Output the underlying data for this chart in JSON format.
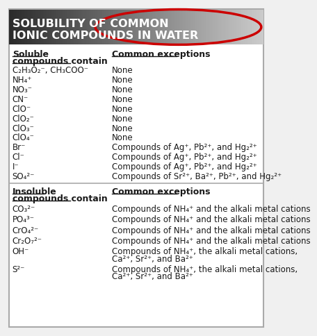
{
  "title_line1": "SOLUBILITY OF COMMON",
  "title_line2": "IONIC COMPOUNDS IN WATER",
  "bg_color": "#f0f0f0",
  "table_bg": "#ffffff",
  "border_color": "#aaaaaa",
  "text_color": "#1a1a1a",
  "header_text_color": "#ffffff",
  "bold_color": "#1a1a1a",
  "ellipse_color": "#cc0000",
  "font_size": 8.5,
  "header_font_size": 11.5,
  "soluble_rows": [
    [
      "C₂H₃O₂⁻, CH₃COO⁻",
      "None"
    ],
    [
      "NH₄⁺",
      "None"
    ],
    [
      "NO₃⁻",
      "None"
    ],
    [
      "CN⁻",
      "None"
    ],
    [
      "ClO⁻",
      "None"
    ],
    [
      "ClO₂⁻",
      "None"
    ],
    [
      "ClO₃⁻",
      "None"
    ],
    [
      "ClO₄⁻",
      "None"
    ],
    [
      "Br⁻",
      "Compounds of Ag⁺, Pb²⁺, and Hg₂²⁺"
    ],
    [
      "Cl⁻",
      "Compounds of Ag⁺, Pb²⁺, and Hg₂²⁺"
    ],
    [
      "I⁻",
      "Compounds of Ag⁺, Pb²⁺, and Hg₂²⁺"
    ],
    [
      "SO₄²⁻",
      "Compounds of Sr²⁺, Ba²⁺, Pb²⁺, and Hg₂²⁺"
    ]
  ],
  "insoluble_rows": [
    [
      "CO₃²⁻",
      "Compounds of NH₄⁺ and the alkali metal cations"
    ],
    [
      "PO₄³⁻",
      "Compounds of NH₄⁺ and the alkali metal cations"
    ],
    [
      "CrO₄²⁻",
      "Compounds of NH₄⁺ and the alkali metal cations"
    ],
    [
      "Cr₂O₇²⁻",
      "Compounds of NH₄⁺ and the alkali metal cations"
    ],
    [
      "OH⁻",
      "Compounds of NH₄⁺, the alkali metal cations,\nCa²⁺, Sr²⁺, and Ba²⁺"
    ],
    [
      "S²⁻",
      "Compounds of NH₄⁺, the alkali metal cations,\nCa²⁺, Sr²⁺, and Ba²⁺"
    ]
  ]
}
